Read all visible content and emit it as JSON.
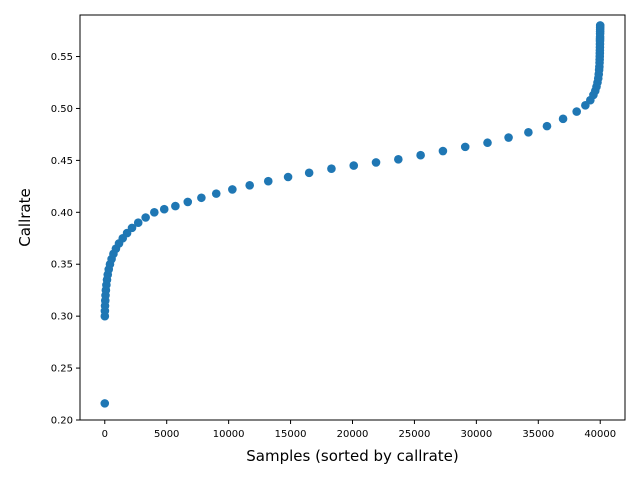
{
  "chart_data": {
    "type": "scatter",
    "title": "",
    "xlabel": "Samples (sorted by callrate)",
    "ylabel": "Callrate",
    "xlim": [
      -2000,
      42000
    ],
    "ylim": [
      0.2,
      0.59
    ],
    "x_ticks": [
      0,
      5000,
      10000,
      15000,
      20000,
      25000,
      30000,
      35000,
      40000
    ],
    "y_ticks": [
      0.2,
      0.25,
      0.3,
      0.35,
      0.4,
      0.45,
      0.5,
      0.55
    ],
    "y_tick_decimals": 2,
    "grid": false,
    "legend": "none",
    "marker_color": "#1f77b4",
    "series": [
      {
        "x": [
          0,
          5,
          10,
          20,
          40,
          60,
          90,
          130,
          180,
          240,
          320,
          420,
          550,
          700,
          900,
          1150,
          1450,
          1800,
          2200,
          2700,
          3300,
          4000,
          4800,
          5700,
          6700,
          7800,
          9000,
          10300,
          11700,
          13200,
          14800,
          16500,
          18300,
          20100,
          21900,
          23700,
          25500,
          27300,
          29100,
          30900,
          32600,
          34200,
          35700,
          37000,
          38100,
          38800,
          39200,
          39450,
          39600,
          39700,
          39780,
          39840,
          39880,
          39910,
          39930,
          39945,
          39955,
          39962,
          39968,
          39972,
          39976,
          39979,
          39982,
          39985,
          39988,
          39990,
          39992,
          39994,
          39996,
          39998
        ],
        "y": [
          0.216,
          0.3,
          0.305,
          0.31,
          0.315,
          0.32,
          0.325,
          0.33,
          0.335,
          0.34,
          0.345,
          0.35,
          0.355,
          0.36,
          0.365,
          0.37,
          0.375,
          0.38,
          0.385,
          0.39,
          0.395,
          0.4,
          0.403,
          0.406,
          0.41,
          0.414,
          0.418,
          0.422,
          0.426,
          0.43,
          0.434,
          0.438,
          0.442,
          0.445,
          0.448,
          0.451,
          0.455,
          0.459,
          0.463,
          0.467,
          0.472,
          0.477,
          0.483,
          0.49,
          0.497,
          0.503,
          0.508,
          0.513,
          0.517,
          0.521,
          0.525,
          0.529,
          0.533,
          0.537,
          0.54,
          0.544,
          0.547,
          0.55,
          0.553,
          0.556,
          0.559,
          0.562,
          0.565,
          0.567,
          0.569,
          0.572,
          0.574,
          0.576,
          0.578,
          0.58
        ]
      }
    ]
  }
}
